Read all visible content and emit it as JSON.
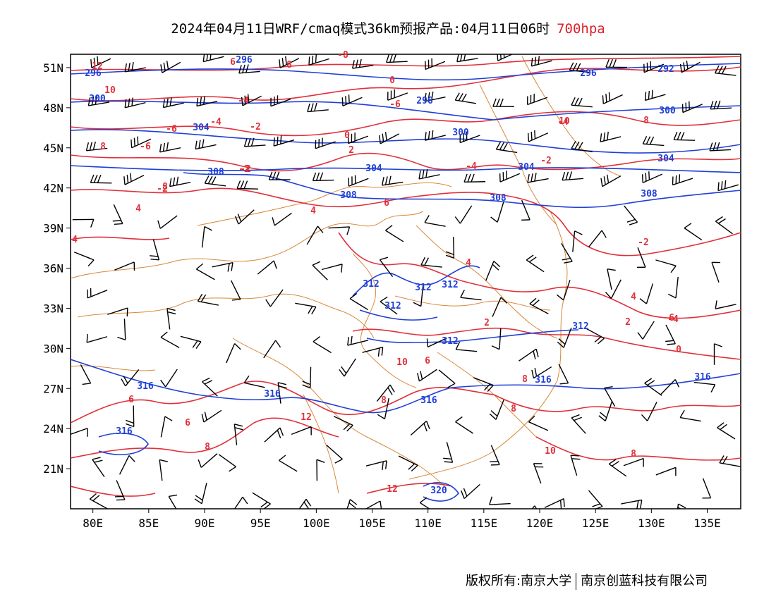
{
  "title": {
    "main": "2024年04月11日WRF/cmaq模式36km预报产品:04月11日06时",
    "level": "700hpa",
    "level_color": "#e0202a"
  },
  "footer": {
    "owner": "版权所有:南京大学",
    "partner": "南京创蓝科技有限公司"
  },
  "map": {
    "lon_range": [
      78,
      138
    ],
    "lat_range": [
      18,
      52
    ],
    "lat_ticks": [
      "51N",
      "48N",
      "45N",
      "42N",
      "39N",
      "36N",
      "33N",
      "30N",
      "27N",
      "24N",
      "21N"
    ],
    "lon_ticks": [
      "80E",
      "85E",
      "90E",
      "95E",
      "100E",
      "105E",
      "110E",
      "115E",
      "120E",
      "125E",
      "130E",
      "135E"
    ],
    "colors": {
      "temperature": "#e0303a",
      "height": "#1f3fd8",
      "border": "#d8893a",
      "wind": "#000000"
    },
    "temperature_labels": [
      "12",
      "10",
      "6",
      "-8",
      "0",
      "-6",
      "-4",
      "-4",
      "-6",
      "-2",
      "0",
      "-4",
      "-2",
      "2",
      "-2",
      "-2",
      "4",
      "2",
      "4",
      "6",
      "4",
      "2",
      "-4",
      "0",
      "-2",
      "6",
      "6",
      "8",
      "8",
      "8",
      "12",
      "10",
      "6",
      "10",
      "12",
      "8",
      "8",
      "10",
      "8",
      "8",
      "4",
      "4",
      "8",
      "8",
      "6",
      "-6",
      "-4",
      "-2"
    ],
    "height_labels": [
      "296",
      "296",
      "300",
      "304",
      "296",
      "300",
      "296",
      "292",
      "300",
      "304",
      "304",
      "304",
      "308",
      "308",
      "308",
      "308",
      "312",
      "312",
      "312",
      "312",
      "312",
      "312",
      "316",
      "316",
      "316",
      "316",
      "316",
      "320",
      "316"
    ],
    "legend_note": ""
  }
}
